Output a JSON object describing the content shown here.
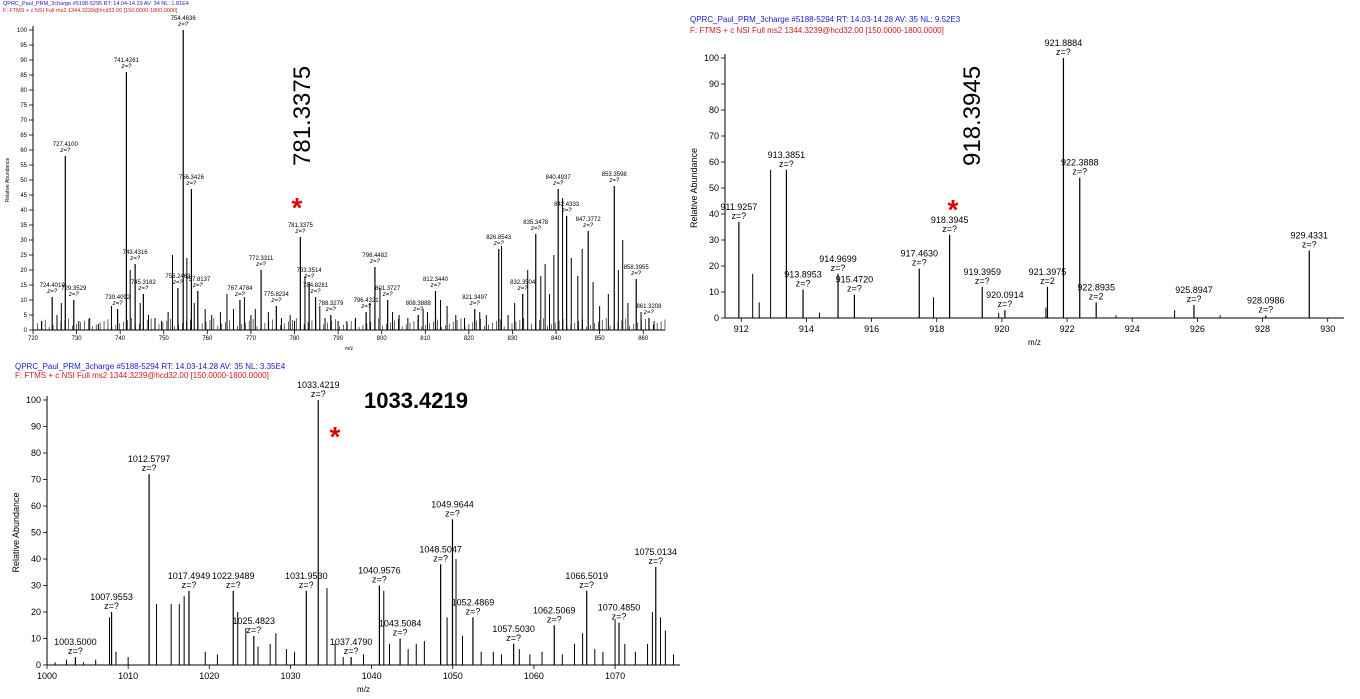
{
  "chart_data": [
    {
      "type": "bar",
      "header1": "QPRC_Paul_PRM_3charge #5198-5295  RT: 14.04-14.29  AV: 34  NL: 1.81E4",
      "header2": "F: FTMS + c NSI Full ms2 1344.3239@hcd32.00 [150.0000-1800.0000]",
      "xlabel": "m/z",
      "ylabel": "Relative Abundance",
      "xlim": [
        720,
        865
      ],
      "ylim": [
        0,
        100
      ],
      "xticks": [
        720,
        730,
        740,
        750,
        760,
        770,
        780,
        790,
        800,
        810,
        820,
        830,
        840,
        850,
        860
      ],
      "yticks": [
        0,
        5,
        10,
        15,
        20,
        25,
        30,
        35,
        40,
        45,
        50,
        55,
        60,
        65,
        70,
        75,
        80,
        85,
        90,
        95,
        100
      ],
      "highlight": {
        "label": "781.3375",
        "marker": "*"
      },
      "labeled_peaks": [
        {
          "mz": 724.4019,
          "ab": 11,
          "label": "724.4019",
          "z": "z=?"
        },
        {
          "mz": 727.41,
          "ab": 58,
          "label": "727.4100",
          "z": "z=?"
        },
        {
          "mz": 729.3529,
          "ab": 10,
          "label": "729.3529",
          "z": "z=?"
        },
        {
          "mz": 739.4092,
          "ab": 7,
          "label": "739.4092",
          "z": "z=?"
        },
        {
          "mz": 741.4261,
          "ab": 86,
          "label": "741.4261",
          "z": "z=?"
        },
        {
          "mz": 743.4316,
          "ab": 22,
          "label": "743.4316",
          "z": "z=?"
        },
        {
          "mz": 745.3182,
          "ab": 12,
          "label": "745.3182",
          "z": "z=?"
        },
        {
          "mz": 753.2463,
          "ab": 14,
          "label": "753.2463",
          "z": "z=?"
        },
        {
          "mz": 754.4636,
          "ab": 100,
          "label": "754.4636",
          "z": "z=?"
        },
        {
          "mz": 756.3426,
          "ab": 47,
          "label": "756.3426",
          "z": "z=?"
        },
        {
          "mz": 757.8137,
          "ab": 13,
          "label": "757.8137",
          "z": "z=?"
        },
        {
          "mz": 767.4784,
          "ab": 10,
          "label": "767.4784",
          "z": "z=?"
        },
        {
          "mz": 772.3311,
          "ab": 20,
          "label": "772.3311",
          "z": "z=?"
        },
        {
          "mz": 775.8234,
          "ab": 8,
          "label": "775.8234",
          "z": "z=?"
        },
        {
          "mz": 781.3375,
          "ab": 31,
          "label": "781.3375",
          "z": "z=?"
        },
        {
          "mz": 783.3514,
          "ab": 16,
          "label": "783.3514",
          "z": "z=?"
        },
        {
          "mz": 784.8281,
          "ab": 11,
          "label": "784.8281",
          "z": "z=?"
        },
        {
          "mz": 788.3279,
          "ab": 5,
          "label": "788.3279",
          "z": "z=?"
        },
        {
          "mz": 796.4321,
          "ab": 6,
          "label": "796.4321",
          "z": "z=?"
        },
        {
          "mz": 798.4482,
          "ab": 21,
          "label": "798.4482",
          "z": "z=?"
        },
        {
          "mz": 801.3727,
          "ab": 10,
          "label": "801.3727",
          "z": "z=?"
        },
        {
          "mz": 808.3888,
          "ab": 5,
          "label": "808.3888",
          "z": "z=?"
        },
        {
          "mz": 812.344,
          "ab": 13,
          "label": "812.3440",
          "z": "z=?"
        },
        {
          "mz": 821.3497,
          "ab": 7,
          "label": "821.3497",
          "z": "z=?"
        },
        {
          "mz": 826.8543,
          "ab": 27,
          "label": "826.8543",
          "z": "z=?"
        },
        {
          "mz": 832.3504,
          "ab": 12,
          "label": "832.3504",
          "z": "z=?"
        },
        {
          "mz": 835.3478,
          "ab": 32,
          "label": "835.3478",
          "z": "z=?"
        },
        {
          "mz": 840.4937,
          "ab": 47,
          "label": "840.4937",
          "z": "z=?"
        },
        {
          "mz": 842.4333,
          "ab": 38,
          "label": "842.4333",
          "z": "z=?"
        },
        {
          "mz": 847.3772,
          "ab": 33,
          "label": "847.3772",
          "z": "z=?"
        },
        {
          "mz": 853.3598,
          "ab": 48,
          "label": "853.3598",
          "z": "z=?"
        },
        {
          "mz": 858.3955,
          "ab": 17,
          "label": "858.3955",
          "z": "z=?"
        },
        {
          "mz": 861.3208,
          "ab": 4,
          "label": "861.3208",
          "z": "z=?"
        }
      ],
      "minor_peaks": [
        [
          722,
          3
        ],
        [
          725.5,
          5
        ],
        [
          726.5,
          9
        ],
        [
          730.5,
          3
        ],
        [
          733,
          4
        ],
        [
          735,
          2
        ],
        [
          738,
          8
        ],
        [
          742.3,
          20
        ],
        [
          744.6,
          9
        ],
        [
          746.5,
          5
        ],
        [
          748,
          4
        ],
        [
          749.5,
          3
        ],
        [
          751,
          6
        ],
        [
          752,
          25
        ],
        [
          755.3,
          24
        ],
        [
          757,
          9
        ],
        [
          759.5,
          7
        ],
        [
          761,
          5
        ],
        [
          763,
          6
        ],
        [
          764.5,
          12
        ],
        [
          766,
          7
        ],
        [
          768.5,
          11
        ],
        [
          770,
          5
        ],
        [
          771,
          7
        ],
        [
          774,
          6
        ],
        [
          777,
          4
        ],
        [
          779,
          5
        ],
        [
          780,
          3
        ],
        [
          782.4,
          18
        ],
        [
          785.8,
          8
        ],
        [
          787,
          4
        ],
        [
          790,
          3
        ],
        [
          792,
          3
        ],
        [
          794,
          4
        ],
        [
          797.3,
          9
        ],
        [
          799.6,
          14
        ],
        [
          802.5,
          6
        ],
        [
          804,
          5
        ],
        [
          806,
          4
        ],
        [
          809.5,
          7
        ],
        [
          810.5,
          6
        ],
        [
          813.5,
          10
        ],
        [
          815,
          8
        ],
        [
          817,
          5
        ],
        [
          819,
          4
        ],
        [
          822.5,
          6
        ],
        [
          824,
          5
        ],
        [
          827.5,
          28
        ],
        [
          829,
          5
        ],
        [
          830.5,
          9
        ],
        [
          833.5,
          20
        ],
        [
          836.5,
          18
        ],
        [
          837.5,
          22
        ],
        [
          838.5,
          12
        ],
        [
          839.5,
          25
        ],
        [
          841.5,
          44
        ],
        [
          843.5,
          24
        ],
        [
          845,
          18
        ],
        [
          846,
          27
        ],
        [
          848.5,
          16
        ],
        [
          850,
          8
        ],
        [
          852,
          12
        ],
        [
          854.3,
          20
        ],
        [
          855.3,
          30
        ],
        [
          856.5,
          9
        ],
        [
          859.5,
          6
        ],
        [
          862.5,
          3
        ]
      ]
    },
    {
      "type": "bar",
      "header1": "QPRC_Paul_PRM_3charge #5188-5294  RT: 14.03-14.28  AV: 35  NL: 9.52E3",
      "header2": "F: FTMS + c NSI Full ms2 1344.3239@hcd32.00 [150.0000-1800.0000]",
      "xlabel": "m/z",
      "ylabel": "Relative Abundance",
      "xlim": [
        911.5,
        930.5
      ],
      "ylim": [
        0,
        100
      ],
      "xticks": [
        912,
        914,
        916,
        918,
        920,
        922,
        924,
        926,
        928,
        930
      ],
      "yticks": [
        0,
        10,
        20,
        30,
        40,
        50,
        60,
        70,
        80,
        90,
        100
      ],
      "highlight": {
        "label": "918.3945",
        "marker": "*"
      },
      "labeled_peaks": [
        {
          "mz": 911.9257,
          "ab": 37,
          "label": "911.9257",
          "z": "z=?"
        },
        {
          "mz": 913.3851,
          "ab": 57,
          "label": "913.3851",
          "z": "z=?"
        },
        {
          "mz": 913.8953,
          "ab": 11,
          "label": "913.8953",
          "z": "z=?"
        },
        {
          "mz": 914.9699,
          "ab": 17,
          "label": "914.9699",
          "z": "z=?"
        },
        {
          "mz": 915.472,
          "ab": 9,
          "label": "915.4720",
          "z": "z=?"
        },
        {
          "mz": 917.463,
          "ab": 19,
          "label": "917.4630",
          "z": "z=?"
        },
        {
          "mz": 918.3945,
          "ab": 32,
          "label": "918.3945",
          "z": "z=?"
        },
        {
          "mz": 919.3959,
          "ab": 12,
          "label": "919.3959",
          "z": "z=?"
        },
        {
          "mz": 920.0914,
          "ab": 3,
          "label": "920.0914",
          "z": "z=?"
        },
        {
          "mz": 921.3975,
          "ab": 12,
          "label": "921.3975",
          "z": "z=2"
        },
        {
          "mz": 921.8884,
          "ab": 100,
          "label": "921.8884",
          "z": "z=?"
        },
        {
          "mz": 922.3888,
          "ab": 54,
          "label": "922.3888",
          "z": "z=?"
        },
        {
          "mz": 922.8935,
          "ab": 6,
          "label": "922.8935",
          "z": "z=2"
        },
        {
          "mz": 925.8947,
          "ab": 5,
          "label": "925.8947",
          "z": "z=?"
        },
        {
          "mz": 928.0986,
          "ab": 1,
          "label": "928.0986",
          "z": "z=?"
        },
        {
          "mz": 929.4331,
          "ab": 26,
          "label": "929.4331",
          "z": "z=?"
        }
      ],
      "minor_peaks": [
        [
          912.35,
          17
        ],
        [
          912.55,
          6
        ],
        [
          912.9,
          57
        ],
        [
          914.4,
          2
        ],
        [
          917.9,
          8
        ],
        [
          919.9,
          2
        ],
        [
          921.35,
          4
        ],
        [
          923.5,
          1
        ],
        [
          925.3,
          3
        ],
        [
          926.7,
          1
        ]
      ]
    },
    {
      "type": "bar",
      "header1": "QPRC_Paul_PRM_3charge #5188-5294  RT: 14.03-14.28  AV: 35  NL: 3.35E4",
      "header2": "F: FTMS + c NSI Full ms2 1344.3239@hcd32.00 [150.0000-1800.0000]",
      "xlabel": "m/z",
      "ylabel": "Relative Abundance",
      "xlim": [
        1000,
        1078
      ],
      "ylim": [
        0,
        100
      ],
      "xticks": [
        1000,
        1010,
        1020,
        1030,
        1040,
        1050,
        1060,
        1070
      ],
      "yticks": [
        0,
        10,
        20,
        30,
        40,
        50,
        60,
        70,
        80,
        90,
        100
      ],
      "highlight": {
        "label": "1033.4219",
        "marker": "*"
      },
      "labeled_peaks": [
        {
          "mz": 1003.5,
          "ab": 3,
          "label": "1003.5000",
          "z": "z=?"
        },
        {
          "mz": 1007.9553,
          "ab": 20,
          "label": "1007.9553",
          "z": "z=?"
        },
        {
          "mz": 1012.5797,
          "ab": 72,
          "label": "1012.5797",
          "z": "z=?"
        },
        {
          "mz": 1017.4949,
          "ab": 28,
          "label": "1017.4949",
          "z": "z=?"
        },
        {
          "mz": 1022.9489,
          "ab": 28,
          "label": "1022.9489",
          "z": "z=?"
        },
        {
          "mz": 1025.4823,
          "ab": 11,
          "label": "1025.4823",
          "z": "z=?"
        },
        {
          "mz": 1031.953,
          "ab": 28,
          "label": "1031.9530",
          "z": "z=?"
        },
        {
          "mz": 1033.4219,
          "ab": 100,
          "label": "1033.4219",
          "z": "z=?"
        },
        {
          "mz": 1037.479,
          "ab": 3,
          "label": "1037.4790",
          "z": "z=?"
        },
        {
          "mz": 1040.9576,
          "ab": 30,
          "label": "1040.9576",
          "z": "z=?"
        },
        {
          "mz": 1043.5084,
          "ab": 10,
          "label": "1043.5084",
          "z": "z=?"
        },
        {
          "mz": 1048.5047,
          "ab": 38,
          "label": "1048.5047",
          "z": "z=?"
        },
        {
          "mz": 1049.9644,
          "ab": 55,
          "label": "1049.9644",
          "z": "z=?"
        },
        {
          "mz": 1052.4869,
          "ab": 18,
          "label": "1052.4869",
          "z": "z=?"
        },
        {
          "mz": 1057.503,
          "ab": 8,
          "label": "1057.5030",
          "z": "z=?"
        },
        {
          "mz": 1062.5069,
          "ab": 15,
          "label": "1062.5069",
          "z": "z=?"
        },
        {
          "mz": 1066.5019,
          "ab": 28,
          "label": "1066.5019",
          "z": "z=?"
        },
        {
          "mz": 1070.485,
          "ab": 16,
          "label": "1070.4850",
          "z": "z=?"
        },
        {
          "mz": 1075.0134,
          "ab": 37,
          "label": "1075.0134",
          "z": "z=?"
        }
      ],
      "minor_peaks": [
        [
          1001,
          1
        ],
        [
          1002.4,
          2
        ],
        [
          1004.5,
          1
        ],
        [
          1006,
          2
        ],
        [
          1007.7,
          18
        ],
        [
          1008.5,
          5
        ],
        [
          1010,
          3
        ],
        [
          1013.5,
          23
        ],
        [
          1015.3,
          23
        ],
        [
          1016.3,
          23
        ],
        [
          1016.9,
          26
        ],
        [
          1019.5,
          5
        ],
        [
          1021,
          4
        ],
        [
          1023.5,
          20
        ],
        [
          1024.5,
          14
        ],
        [
          1026,
          7
        ],
        [
          1027.5,
          8
        ],
        [
          1028.2,
          12
        ],
        [
          1029.5,
          6
        ],
        [
          1030.5,
          5
        ],
        [
          1034.5,
          29
        ],
        [
          1035.5,
          8
        ],
        [
          1036.5,
          3
        ],
        [
          1039,
          4
        ],
        [
          1041.5,
          28
        ],
        [
          1042.2,
          8
        ],
        [
          1044.5,
          6
        ],
        [
          1045.5,
          8
        ],
        [
          1046.5,
          9
        ],
        [
          1049.3,
          18
        ],
        [
          1050.4,
          40
        ],
        [
          1051.2,
          11
        ],
        [
          1053.5,
          5
        ],
        [
          1055,
          5
        ],
        [
          1056,
          4
        ],
        [
          1058.2,
          6
        ],
        [
          1059.5,
          4
        ],
        [
          1061,
          5
        ],
        [
          1063.5,
          4
        ],
        [
          1065,
          8
        ],
        [
          1066,
          12
        ],
        [
          1067.5,
          6
        ],
        [
          1068.5,
          5
        ],
        [
          1070,
          17
        ],
        [
          1071.2,
          8
        ],
        [
          1072.5,
          5
        ],
        [
          1074,
          8
        ],
        [
          1074.6,
          20
        ],
        [
          1075.6,
          18
        ],
        [
          1076.2,
          13
        ],
        [
          1077.2,
          4
        ]
      ]
    }
  ]
}
